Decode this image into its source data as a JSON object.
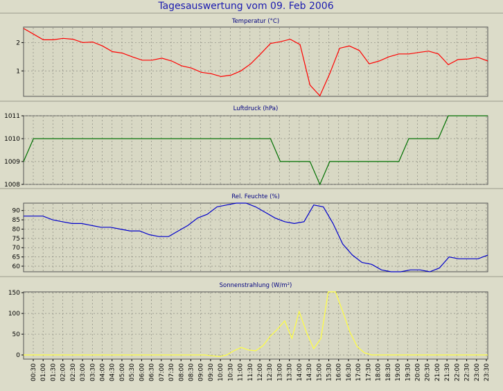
{
  "title": "Tagesauswertung vom 09. Feb 2006",
  "colors": {
    "background": "#dcdcc9",
    "plot": "#d8d8c4",
    "grid": "#8a8a80",
    "temperature": "#ff0000",
    "pressure": "#007000",
    "humidity": "#0000cc",
    "radiation": "#ffff40"
  },
  "x_ticks": [
    "00:30",
    "01:00",
    "01:30",
    "02:00",
    "02:30",
    "03:00",
    "03:30",
    "04:00",
    "04:30",
    "05:00",
    "05:30",
    "06:00",
    "06:30",
    "07:00",
    "07:30",
    "08:00",
    "08:30",
    "09:00",
    "09:30",
    "10:00",
    "10:30",
    "11:00",
    "11:30",
    "12:00",
    "12:30",
    "13:00",
    "13:30",
    "14:00",
    "14:30",
    "15:00",
    "15:30",
    "16:00",
    "16:30",
    "17:00",
    "17:30",
    "18:00",
    "18:30",
    "19:00",
    "19:30",
    "20:00",
    "20:30",
    "21:00",
    "21:30",
    "22:00",
    "22:30",
    "23:00",
    "23:30"
  ],
  "chart_data": [
    {
      "type": "line",
      "title": "Temperatur (°C)",
      "ylim": [
        0.1,
        2.55
      ],
      "yticks": [
        1,
        2
      ],
      "series": [
        {
          "values": [
            2.5,
            2.3,
            2.1,
            2.1,
            2.15,
            2.12,
            2.0,
            2.02,
            1.88,
            1.68,
            1.63,
            1.5,
            1.38,
            1.38,
            1.45,
            1.35,
            1.18,
            1.1,
            0.95,
            0.9,
            0.8,
            0.85,
            1.0,
            1.25,
            1.6,
            1.97,
            2.03,
            2.12,
            1.93,
            0.5,
            0.12,
            0.9,
            1.8,
            1.88,
            1.72,
            1.25,
            1.35,
            1.5,
            1.6,
            1.6,
            1.65,
            1.7,
            1.6,
            1.22,
            1.4,
            1.42,
            1.48,
            1.35
          ]
        }
      ]
    },
    {
      "type": "line",
      "title": "Luftdruck (hPa)",
      "ylim": [
        1008,
        1011
      ],
      "yticks": [
        1008,
        1009,
        1010,
        1011
      ],
      "series": [
        {
          "values": [
            1009,
            1010,
            1010,
            1010,
            1010,
            1010,
            1010,
            1010,
            1010,
            1010,
            1010,
            1010,
            1010,
            1010,
            1010,
            1010,
            1010,
            1010,
            1010,
            1010,
            1010,
            1010,
            1010,
            1010,
            1010,
            1010,
            1009,
            1009,
            1009,
            1009,
            1008,
            1009,
            1009,
            1009,
            1009,
            1009,
            1009,
            1009,
            1009,
            1010,
            1010,
            1010,
            1010,
            1011,
            1011,
            1011,
            1011,
            1011
          ]
        }
      ]
    },
    {
      "type": "line",
      "title": "Rel. Feuchte (%)",
      "ylim": [
        57,
        94
      ],
      "yticks": [
        60,
        65,
        70,
        75,
        80,
        85,
        90
      ],
      "series": [
        {
          "values": [
            87,
            87,
            87,
            85,
            84,
            83,
            83,
            82,
            81,
            81,
            80,
            79,
            79,
            77,
            76,
            76,
            79,
            82,
            86,
            88,
            92,
            93,
            94,
            94,
            92,
            89,
            86,
            84,
            83,
            84,
            93,
            92,
            83,
            72,
            66,
            62,
            61,
            58,
            57,
            57,
            58,
            58,
            57,
            59,
            65,
            64,
            64,
            64,
            66
          ]
        }
      ]
    },
    {
      "type": "area",
      "title": "Sonnenstrahlung (W/m²)",
      "ylim": [
        -10,
        152
      ],
      "yticks": [
        0,
        50,
        100,
        150
      ],
      "series": [
        {
          "values": [
            0,
            0,
            0,
            0,
            0,
            0,
            0,
            0,
            0,
            0,
            0,
            0,
            0,
            0,
            0,
            0,
            0,
            0,
            0,
            0,
            0,
            0,
            0,
            0,
            0,
            0,
            -2,
            -4,
            0,
            10,
            18,
            12,
            10,
            22,
            45,
            62,
            82,
            40,
            105,
            55,
            15,
            40,
            152,
            155,
            105,
            55,
            20,
            5,
            0,
            0,
            0,
            0,
            0,
            0,
            0,
            0,
            0,
            0,
            0,
            0,
            0,
            0,
            0,
            0,
            0
          ]
        }
      ]
    }
  ]
}
